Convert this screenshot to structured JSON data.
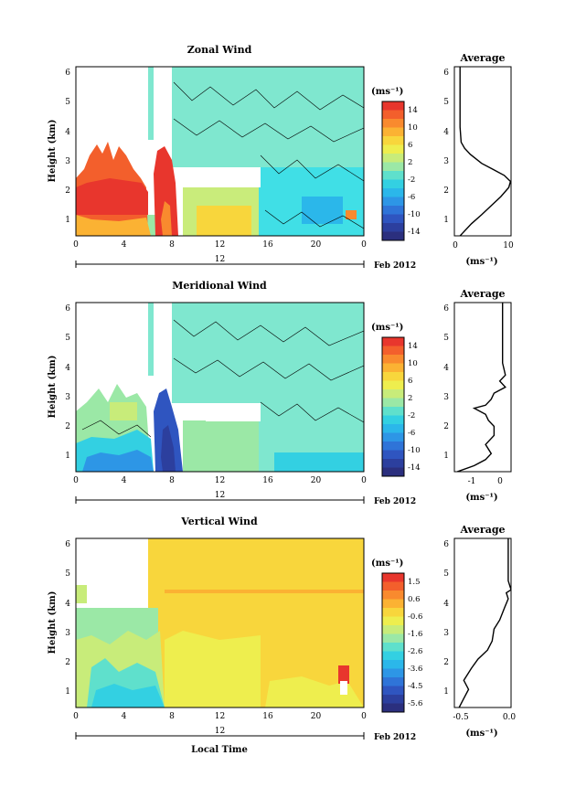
{
  "colorbar_palette": [
    "#2b2f7e",
    "#2c3f9e",
    "#2f55c0",
    "#2f74d8",
    "#2d96e6",
    "#2bb7ea",
    "#33d0e2",
    "#5fe0cc",
    "#9be8a6",
    "#c8ec7a",
    "#eeee4e",
    "#f8d63c",
    "#fbb233",
    "#f98a2e",
    "#f35f2c",
    "#e8362d"
  ],
  "chart_data": [
    {
      "type": "heatmap",
      "title": "Zonal Wind",
      "ylabel": "Height (km)",
      "unit": "(ms⁻¹)",
      "x_ticks": [
        "0",
        "4",
        "8",
        "12",
        "16",
        "20",
        "0"
      ],
      "y_ticks": [
        "1",
        "2",
        "3",
        "4",
        "5",
        "6"
      ],
      "date_marker": "12",
      "date_label": "Feb 2012",
      "colorbar_ticks": [
        "14",
        "10",
        "6",
        "2",
        "-2",
        "-6",
        "-10",
        "-14"
      ],
      "colorbar_range": [
        -16,
        16
      ],
      "grid": false,
      "average_profile": {
        "title": "Average",
        "x_ticks": [
          "0",
          "10"
        ],
        "y_ticks": [
          "1",
          "2",
          "3",
          "4",
          "5",
          "6"
        ],
        "xlabel": "(ms⁻¹)",
        "xlim": [
          0,
          10
        ],
        "points": [
          [
            0.5,
            0.3
          ],
          [
            1.5,
            0.5
          ],
          [
            3.0,
            0.8
          ],
          [
            4.8,
            1.1
          ],
          [
            6.5,
            1.4
          ],
          [
            8.2,
            1.7
          ],
          [
            9.6,
            2.0
          ],
          [
            9.9,
            2.2
          ],
          [
            8.8,
            2.4
          ],
          [
            6.8,
            2.6
          ],
          [
            4.8,
            2.8
          ],
          [
            2.8,
            3.1
          ],
          [
            1.8,
            3.3
          ],
          [
            1.2,
            3.5
          ],
          [
            1.0,
            4.0
          ],
          [
            1.0,
            4.6
          ],
          [
            1.0,
            5.3
          ],
          [
            1.0,
            6.0
          ]
        ]
      }
    },
    {
      "type": "heatmap",
      "title": "Meridional Wind",
      "ylabel": "Height (km)",
      "unit": "(ms⁻¹)",
      "x_ticks": [
        "0",
        "4",
        "8",
        "12",
        "16",
        "20",
        "0"
      ],
      "y_ticks": [
        "1",
        "2",
        "3",
        "4",
        "5",
        "6"
      ],
      "date_marker": "12",
      "date_label": "Feb 2012",
      "colorbar_ticks": [
        "14",
        "10",
        "6",
        "2",
        "-2",
        "-6",
        "-10",
        "-14"
      ],
      "colorbar_range": [
        -16,
        16
      ],
      "grid": false,
      "average_profile": {
        "title": "Average",
        "x_ticks": [
          "-1",
          "0"
        ],
        "y_ticks": [
          "1",
          "2",
          "3",
          "4",
          "5",
          "6"
        ],
        "xlabel": "(ms⁻¹)",
        "xlim": [
          -1.7,
          0.3
        ],
        "points": [
          [
            -1.6,
            0.4
          ],
          [
            -1.0,
            0.6
          ],
          [
            -0.6,
            0.8
          ],
          [
            -0.4,
            1.0
          ],
          [
            -0.6,
            1.3
          ],
          [
            -0.3,
            1.6
          ],
          [
            -0.3,
            1.9
          ],
          [
            -0.5,
            2.1
          ],
          [
            -0.6,
            2.3
          ],
          [
            -1.0,
            2.5
          ],
          [
            -0.6,
            2.6
          ],
          [
            -0.4,
            2.8
          ],
          [
            -0.3,
            3.0
          ],
          [
            0.1,
            3.2
          ],
          [
            -0.1,
            3.4
          ],
          [
            0.1,
            3.6
          ],
          [
            0.0,
            4.0
          ],
          [
            0.0,
            5.0
          ],
          [
            0.0,
            6.0
          ]
        ]
      }
    },
    {
      "type": "heatmap",
      "title": "Vertical Wind",
      "ylabel": "Height (km)",
      "xlabel": "Local Time",
      "unit": "(ms⁻¹)",
      "x_ticks": [
        "0",
        "4",
        "8",
        "12",
        "16",
        "20",
        "0"
      ],
      "y_ticks": [
        "1",
        "2",
        "3",
        "4",
        "5",
        "6"
      ],
      "date_marker": "12",
      "date_label": "Feb 2012",
      "colorbar_ticks": [
        "1.5",
        "0.6",
        "-0.6",
        "-1.6",
        "-2.6",
        "-3.6",
        "-4.5",
        "-5.6"
      ],
      "colorbar_range": [
        -6,
        2
      ],
      "grid": false,
      "average_profile": {
        "title": "Average",
        "x_ticks": [
          "-0.5",
          "0.0"
        ],
        "y_ticks": [
          "1",
          "2",
          "3",
          "4",
          "5",
          "6"
        ],
        "xlabel": "(ms⁻¹)",
        "xlim": [
          -0.6,
          0.0
        ],
        "points": [
          [
            -0.55,
            0.4
          ],
          [
            -0.5,
            0.7
          ],
          [
            -0.45,
            1.0
          ],
          [
            -0.5,
            1.3
          ],
          [
            -0.42,
            1.7
          ],
          [
            -0.35,
            2.0
          ],
          [
            -0.25,
            2.3
          ],
          [
            -0.2,
            2.6
          ],
          [
            -0.18,
            3.0
          ],
          [
            -0.12,
            3.3
          ],
          [
            -0.07,
            3.7
          ],
          [
            -0.03,
            4.0
          ],
          [
            -0.05,
            4.2
          ],
          [
            0.0,
            4.3
          ],
          [
            -0.03,
            4.6
          ],
          [
            -0.03,
            5.0
          ],
          [
            -0.03,
            5.5
          ],
          [
            -0.03,
            6.0
          ]
        ]
      }
    }
  ]
}
